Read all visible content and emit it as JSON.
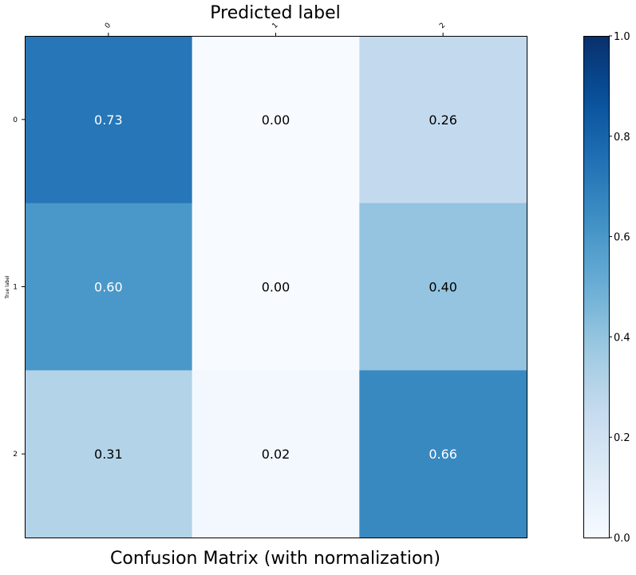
{
  "chart_data": {
    "type": "heatmap",
    "title": "Confusion Matrix (with normalization)",
    "xlabel": "Predicted label",
    "ylabel": "True label",
    "x_categories": [
      "0",
      "1",
      "2"
    ],
    "y_categories": [
      "0",
      "1",
      "2"
    ],
    "values": [
      [
        0.73,
        0.0,
        0.26
      ],
      [
        0.6,
        0.0,
        0.4
      ],
      [
        0.31,
        0.02,
        0.66
      ]
    ],
    "value_labels": [
      [
        "0.73",
        "0.00",
        "0.26"
      ],
      [
        "0.60",
        "0.00",
        "0.40"
      ],
      [
        "0.31",
        "0.02",
        "0.66"
      ]
    ],
    "colormap": "Blues",
    "colorbar": {
      "range": [
        0.0,
        1.0
      ],
      "ticks": [
        0.0,
        0.2,
        0.4,
        0.6,
        0.8,
        1.0
      ],
      "tick_labels": [
        "0.0",
        "0.2",
        "0.4",
        "0.6",
        "0.8",
        "1.0"
      ]
    },
    "x_axis_position": "top",
    "grid": false
  }
}
